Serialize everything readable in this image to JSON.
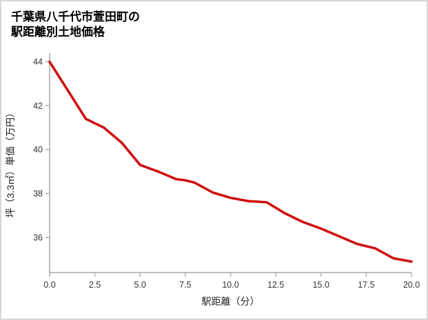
{
  "chart_data": {
    "type": "line",
    "title": "千葉県八千代市萱田町の駅距離別土地価格",
    "title_lines": [
      "千葉県八千代市萱田町の",
      "駅距離別土地価格"
    ],
    "xlabel": "駅距離（分）",
    "ylabel": "坪（3.3㎡）単価（万円）",
    "x": [
      0,
      1,
      2,
      2.5,
      3,
      4,
      5,
      6,
      7,
      7.5,
      8,
      9,
      10,
      11,
      12,
      13,
      14,
      15,
      16,
      17,
      17.5,
      18,
      19,
      20
    ],
    "y": [
      44.0,
      42.7,
      41.4,
      41.2,
      41.0,
      40.3,
      39.3,
      39.0,
      38.65,
      38.6,
      38.5,
      38.05,
      37.8,
      37.65,
      37.6,
      37.1,
      36.7,
      36.4,
      36.05,
      35.7,
      35.6,
      35.5,
      35.05,
      34.9
    ],
    "xlim": [
      0,
      20
    ],
    "ylim": [
      34.4,
      44.4
    ],
    "xticks": [
      0,
      2.5,
      5,
      7.5,
      10,
      12.5,
      15,
      17.5,
      20
    ],
    "xtick_labels": [
      "0.0",
      "2.5",
      "5.0",
      "7.5",
      "10.0",
      "12.5",
      "15.0",
      "17.5",
      "20.0"
    ],
    "yticks": [
      36,
      38,
      40,
      42,
      44
    ],
    "ytick_labels": [
      "36",
      "38",
      "40",
      "42",
      "44"
    ],
    "grid": false,
    "legend": false,
    "line_color": "#d01010",
    "axis_color": "#bcbcbc",
    "tick_label_color": "#333333",
    "title_color": "#000000",
    "background_color": "#ffffff",
    "border_color": "#d6d6d6"
  }
}
